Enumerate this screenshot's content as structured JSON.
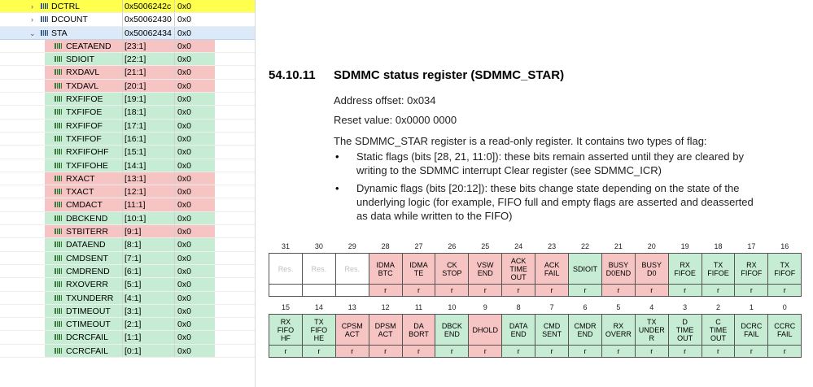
{
  "tree": {
    "rows": [
      {
        "kind": "reg",
        "chev": "›",
        "name": "DCTRL",
        "addr": "0x5006242c",
        "val": "0x0",
        "style": "hl"
      },
      {
        "kind": "reg",
        "chev": "›",
        "name": "DCOUNT",
        "addr": "0x50062430",
        "val": "0x0",
        "style": ""
      },
      {
        "kind": "reg",
        "chev": "⌄",
        "name": "STA",
        "addr": "0x50062434",
        "val": "0x0",
        "style": "sel"
      },
      {
        "kind": "flag",
        "name": "CEATAEND",
        "bits": "[23:1]",
        "val": "0x0",
        "color": "red"
      },
      {
        "kind": "flag",
        "name": "SDIOIT",
        "bits": "[22:1]",
        "val": "0x0",
        "color": "green"
      },
      {
        "kind": "flag",
        "name": "RXDAVL",
        "bits": "[21:1]",
        "val": "0x0",
        "color": "red"
      },
      {
        "kind": "flag",
        "name": "TXDAVL",
        "bits": "[20:1]",
        "val": "0x0",
        "color": "red"
      },
      {
        "kind": "flag",
        "name": "RXFIFOE",
        "bits": "[19:1]",
        "val": "0x0",
        "color": "green"
      },
      {
        "kind": "flag",
        "name": "TXFIFOE",
        "bits": "[18:1]",
        "val": "0x0",
        "color": "green"
      },
      {
        "kind": "flag",
        "name": "RXFIFOF",
        "bits": "[17:1]",
        "val": "0x0",
        "color": "green"
      },
      {
        "kind": "flag",
        "name": "TXFIFOF",
        "bits": "[16:1]",
        "val": "0x0",
        "color": "green"
      },
      {
        "kind": "flag",
        "name": "RXFIFOHF",
        "bits": "[15:1]",
        "val": "0x0",
        "color": "green"
      },
      {
        "kind": "flag",
        "name": "TXFIFOHE",
        "bits": "[14:1]",
        "val": "0x0",
        "color": "green"
      },
      {
        "kind": "flag",
        "name": "RXACT",
        "bits": "[13:1]",
        "val": "0x0",
        "color": "red"
      },
      {
        "kind": "flag",
        "name": "TXACT",
        "bits": "[12:1]",
        "val": "0x0",
        "color": "red"
      },
      {
        "kind": "flag",
        "name": "CMDACT",
        "bits": "[11:1]",
        "val": "0x0",
        "color": "red"
      },
      {
        "kind": "flag",
        "name": "DBCKEND",
        "bits": "[10:1]",
        "val": "0x0",
        "color": "green"
      },
      {
        "kind": "flag",
        "name": "STBITERR",
        "bits": "[9:1]",
        "val": "0x0",
        "color": "red"
      },
      {
        "kind": "flag",
        "name": "DATAEND",
        "bits": "[8:1]",
        "val": "0x0",
        "color": "green"
      },
      {
        "kind": "flag",
        "name": "CMDSENT",
        "bits": "[7:1]",
        "val": "0x0",
        "color": "green"
      },
      {
        "kind": "flag",
        "name": "CMDREND",
        "bits": "[6:1]",
        "val": "0x0",
        "color": "green"
      },
      {
        "kind": "flag",
        "name": "RXOVERR",
        "bits": "[5:1]",
        "val": "0x0",
        "color": "green"
      },
      {
        "kind": "flag",
        "name": "TXUNDERR",
        "bits": "[4:1]",
        "val": "0x0",
        "color": "green"
      },
      {
        "kind": "flag",
        "name": "DTIMEOUT",
        "bits": "[3:1]",
        "val": "0x0",
        "color": "green"
      },
      {
        "kind": "flag",
        "name": "CTIMEOUT",
        "bits": "[2:1]",
        "val": "0x0",
        "color": "green"
      },
      {
        "kind": "flag",
        "name": "DCRCFAIL",
        "bits": "[1:1]",
        "val": "0x0",
        "color": "green"
      },
      {
        "kind": "flag",
        "name": "CCRCFAIL",
        "bits": "[0:1]",
        "val": "0x0",
        "color": "green"
      }
    ]
  },
  "doc": {
    "section_number": "54.10.11",
    "section_title": "SDMMC status register (SDMMC_STAR)",
    "address_offset": "Address offset: 0x034",
    "reset_value": "Reset value: 0x0000 0000",
    "intro": "The SDMMC_STAR register is a read-only register. It contains two types of flag:",
    "bullets": [
      {
        "mark": "•",
        "line1": "Static flags (bits [28, 21, 11:0]): these bits remain asserted until they are cleared by",
        "line2": "writing to the SDMMC interrupt Clear register (see SDMMC_ICR)",
        "line3": ""
      },
      {
        "mark": "•",
        "line1": "Dynamic flags (bits [20:12]): these bits change state depending on the state of the",
        "line2": "underlying logic (for example, FIFO full and empty flags are asserted and deasserted",
        "line3": "as data while written to the FIFO)"
      }
    ]
  },
  "upper_register": {
    "bits": [
      "31",
      "30",
      "29",
      "28",
      "27",
      "26",
      "25",
      "24",
      "23",
      "22",
      "21",
      "20",
      "19",
      "18",
      "17",
      "16"
    ],
    "fields": [
      {
        "l": [
          "Res."
        ],
        "c": "res",
        "a": ""
      },
      {
        "l": [
          "Res."
        ],
        "c": "res",
        "a": ""
      },
      {
        "l": [
          "Res."
        ],
        "c": "res",
        "a": ""
      },
      {
        "l": [
          "IDMA",
          "BTC"
        ],
        "c": "r",
        "a": "r"
      },
      {
        "l": [
          "IDMA",
          "TE"
        ],
        "c": "r",
        "a": "r"
      },
      {
        "l": [
          "CK",
          "STOP"
        ],
        "c": "r",
        "a": "r"
      },
      {
        "l": [
          "VSW",
          "END"
        ],
        "c": "r",
        "a": "r"
      },
      {
        "l": [
          "ACK",
          "TIME",
          "OUT"
        ],
        "c": "r",
        "a": "r"
      },
      {
        "l": [
          "ACK",
          "FAIL"
        ],
        "c": "r",
        "a": "r"
      },
      {
        "l": [
          "SDIOIT"
        ],
        "c": "g",
        "a": "r"
      },
      {
        "l": [
          "BUSY",
          "D0END"
        ],
        "c": "r",
        "a": "r"
      },
      {
        "l": [
          "BUSY",
          "D0"
        ],
        "c": "r",
        "a": "r"
      },
      {
        "l": [
          "RX",
          "FIFOE"
        ],
        "c": "g",
        "a": "r"
      },
      {
        "l": [
          "TX",
          "FIFOE"
        ],
        "c": "g",
        "a": "r"
      },
      {
        "l": [
          "RX",
          "FIFOF"
        ],
        "c": "g",
        "a": "r"
      },
      {
        "l": [
          "TX",
          "FIFOF"
        ],
        "c": "g",
        "a": "r"
      }
    ]
  },
  "lower_register": {
    "bits": [
      "15",
      "14",
      "13",
      "12",
      "11",
      "10",
      "9",
      "8",
      "7",
      "6",
      "5",
      "4",
      "3",
      "2",
      "1",
      "0"
    ],
    "fields": [
      {
        "l": [
          "RX",
          "FIFO",
          "HF"
        ],
        "c": "g",
        "a": "r"
      },
      {
        "l": [
          "TX",
          "FIFO",
          "HE"
        ],
        "c": "g",
        "a": "r"
      },
      {
        "l": [
          "CPSM",
          "ACT"
        ],
        "c": "r",
        "a": "r"
      },
      {
        "l": [
          "DPSM",
          "ACT"
        ],
        "c": "r",
        "a": "r"
      },
      {
        "l": [
          "DA",
          "BORT"
        ],
        "c": "r",
        "a": "r"
      },
      {
        "l": [
          "DBCK",
          "END"
        ],
        "c": "g",
        "a": "r"
      },
      {
        "l": [
          "DHOLD"
        ],
        "c": "r",
        "a": "r"
      },
      {
        "l": [
          "DATA",
          "END"
        ],
        "c": "g",
        "a": "r"
      },
      {
        "l": [
          "CMD",
          "SENT"
        ],
        "c": "g",
        "a": "r"
      },
      {
        "l": [
          "CMDR",
          "END"
        ],
        "c": "g",
        "a": "r"
      },
      {
        "l": [
          "RX",
          "OVERR"
        ],
        "c": "g",
        "a": "r"
      },
      {
        "l": [
          "TX",
          "UNDER",
          "R"
        ],
        "c": "g",
        "a": "r"
      },
      {
        "l": [
          "D",
          "TIME",
          "OUT"
        ],
        "c": "g",
        "a": "r"
      },
      {
        "l": [
          "C",
          "TIME",
          "OUT"
        ],
        "c": "g",
        "a": "r"
      },
      {
        "l": [
          "DCRC",
          "FAIL"
        ],
        "c": "g",
        "a": "r"
      },
      {
        "l": [
          "CCRC",
          "FAIL"
        ],
        "c": "g",
        "a": "r"
      }
    ]
  }
}
